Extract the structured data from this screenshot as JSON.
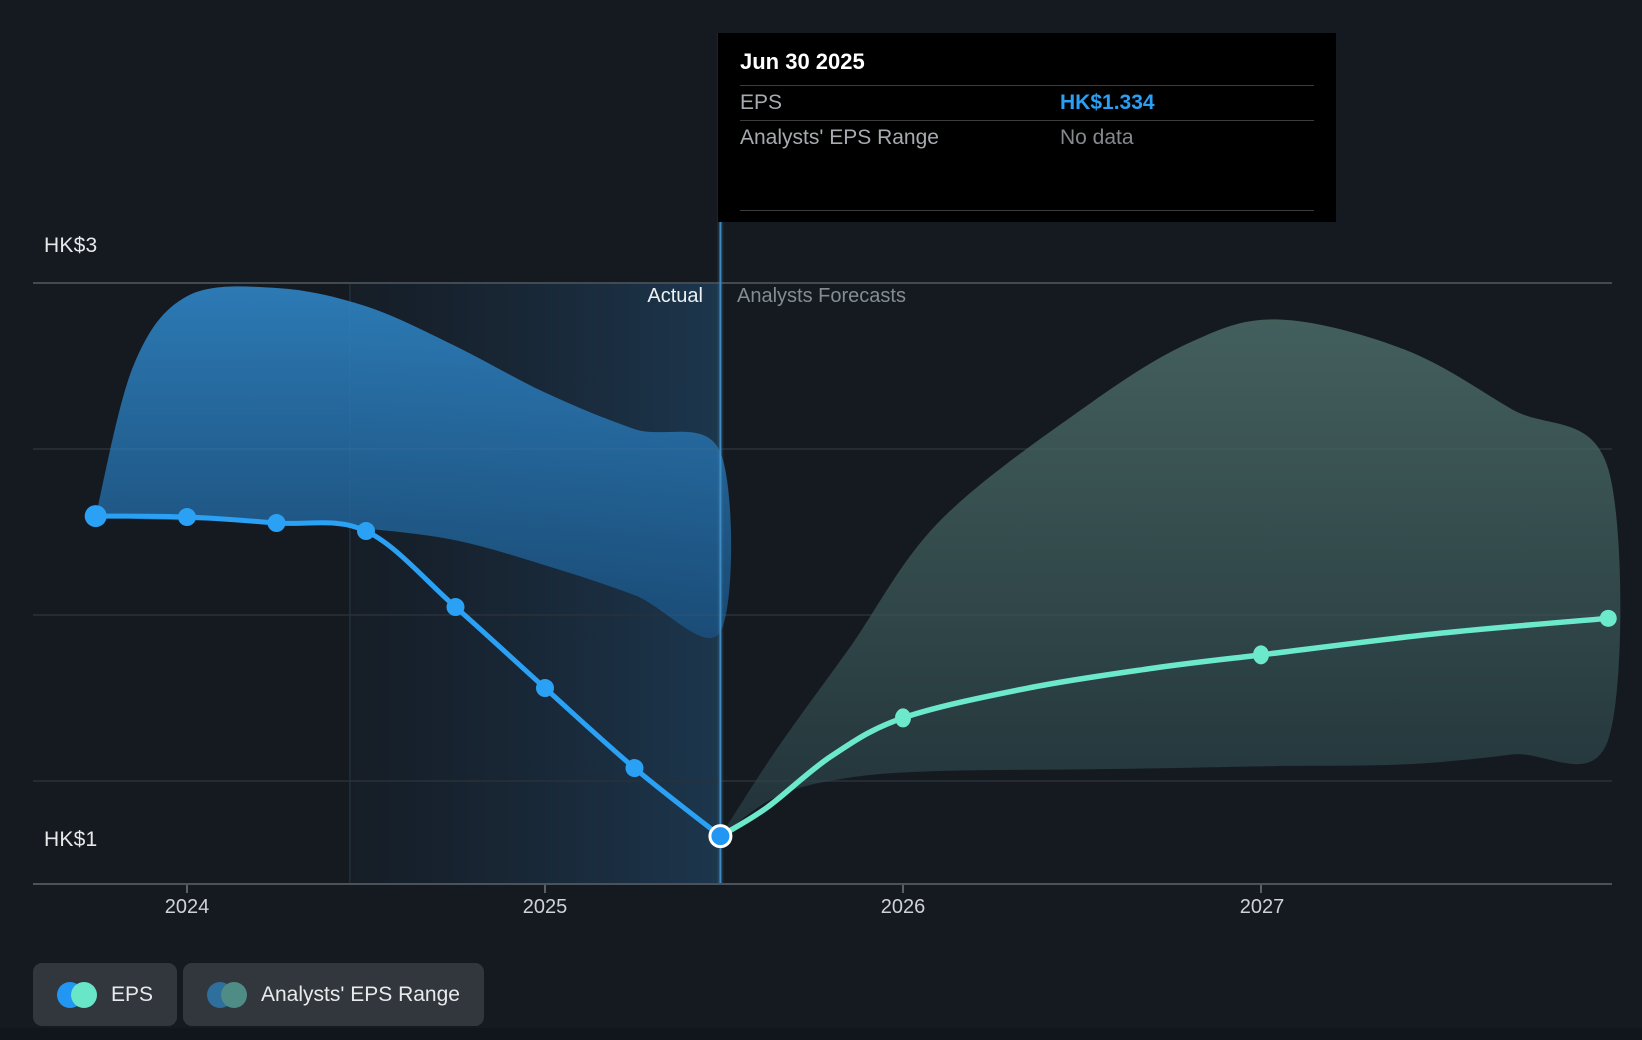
{
  "tooltip": {
    "date": "Jun 30 2025",
    "rows": [
      {
        "label": "EPS",
        "value": "HK$1.334",
        "value_color": "#2b9ff4"
      },
      {
        "label": "Analysts' EPS Range",
        "value": "No data",
        "value_color": "#85898e"
      }
    ]
  },
  "y_axis": {
    "top_label": "HK$3",
    "bottom_label": "HK$1"
  },
  "x_axis": {
    "labels": [
      "2024",
      "2025",
      "2026",
      "2027"
    ]
  },
  "zones": {
    "actual_label": "Actual",
    "forecast_label": "Analysts Forecasts"
  },
  "legend": [
    {
      "label": "EPS",
      "colors": [
        "#2196f3",
        "#69e5c8"
      ]
    },
    {
      "label": "Analysts' EPS Range",
      "colors": [
        "#2e6f9d",
        "#4f8c85"
      ]
    }
  ],
  "chart_data": {
    "type": "line",
    "title": "EPS actual vs analysts forecast (HK$ per share)",
    "currency": "HK$",
    "ylim": [
      1.0,
      3.0
    ],
    "y_gridlines_hkd": [
      3.0,
      2.5,
      2.0,
      1.5
    ],
    "x_ticks": [
      2024,
      2025,
      2026,
      2027
    ],
    "divider_x": 2025.49,
    "highlight_span": [
      2024.455,
      2025.49
    ],
    "junction": {
      "x": 2025.49,
      "y": 1.334,
      "label": "Jun 30 2025 EPS HK$1.334"
    },
    "series": [
      {
        "name": "EPS (actual)",
        "color": "#2aa1f4",
        "width": 5,
        "x": [
          2023.745,
          2024.0,
          2024.25,
          2024.5,
          2024.75,
          2025.0,
          2025.25,
          2025.49
        ],
        "y": [
          2.298,
          2.295,
          2.277,
          2.253,
          2.024,
          1.78,
          1.539,
          1.334
        ],
        "markers": [
          [
            2023.745,
            2.298
          ],
          [
            2024.0,
            2.295
          ],
          [
            2024.25,
            2.277
          ],
          [
            2024.5,
            2.253
          ],
          [
            2024.75,
            2.024
          ],
          [
            2025.0,
            1.78
          ],
          [
            2025.25,
            1.539
          ]
        ]
      },
      {
        "name": "EPS (analysts forecast)",
        "color": "#6ce8cb",
        "width": 5.5,
        "x": [
          2025.49,
          2025.62,
          2025.8,
          2026.0,
          2026.35,
          2026.7,
          2027.0,
          2027.5,
          2027.97
        ],
        "y": [
          1.334,
          1.42,
          1.575,
          1.69,
          1.78,
          1.84,
          1.88,
          1.945,
          1.99
        ],
        "markers": [
          [
            2026.0,
            1.69
          ],
          [
            2027.0,
            1.88
          ],
          [
            2027.97,
            1.99
          ]
        ]
      }
    ],
    "bands": [
      {
        "name": "Analysts' EPS Range (actual)",
        "x": [
          2023.745,
          2023.85,
          2024.0,
          2024.25,
          2024.5,
          2024.75,
          2025.0,
          2025.25,
          2025.49
        ],
        "hi": [
          2.298,
          2.75,
          2.96,
          2.985,
          2.93,
          2.81,
          2.67,
          2.56,
          2.49
        ],
        "lo": [
          2.298,
          2.29,
          2.285,
          2.28,
          2.26,
          2.225,
          2.15,
          2.06,
          1.95
        ]
      },
      {
        "name": "Analysts' EPS Range (forecast)",
        "x": [
          2025.49,
          2025.65,
          2025.85,
          2026.1,
          2026.5,
          2026.8,
          2027.05,
          2027.4,
          2027.7,
          2027.97
        ],
        "hi": [
          1.334,
          1.6,
          1.9,
          2.28,
          2.62,
          2.82,
          2.89,
          2.8,
          2.62,
          2.44
        ],
        "lo": [
          1.334,
          1.455,
          1.51,
          1.53,
          1.535,
          1.54,
          1.545,
          1.55,
          1.58,
          1.625
        ]
      }
    ]
  }
}
